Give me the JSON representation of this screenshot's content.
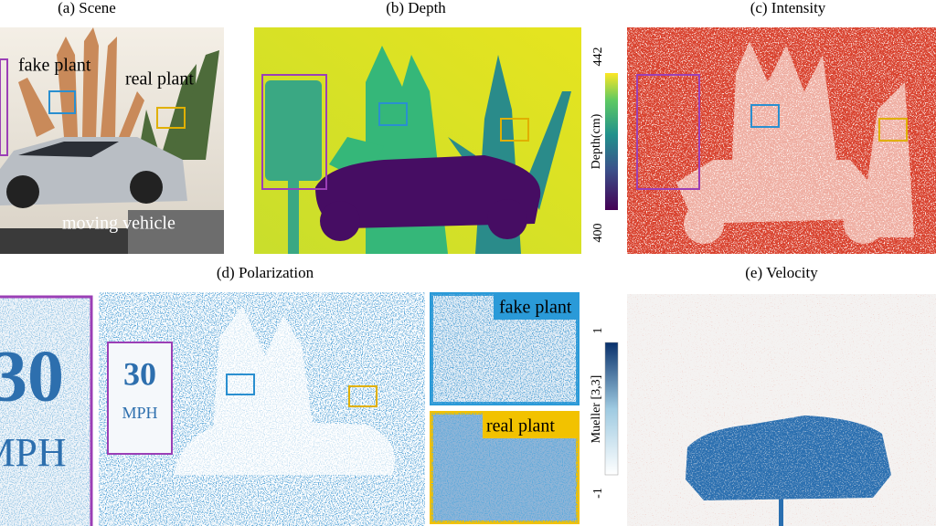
{
  "panels": {
    "scene": {
      "title": "(a) Scene",
      "labels": [
        "fake plant",
        "real plant",
        "moving vehicle"
      ]
    },
    "depth": {
      "title": "(b) Depth",
      "colorbar": {
        "label": "Depth(cm)",
        "max": "442",
        "min": "400"
      }
    },
    "intensity": {
      "title": "(c) Intensity"
    },
    "polarization": {
      "title": "(d) Polarization",
      "sign": [
        "30",
        "MPH"
      ],
      "insets": [
        "fake plant",
        "real plant"
      ]
    },
    "velocity": {
      "title": "(e) Velocity",
      "colorbar": {
        "label": "Mueller [3,3]",
        "max": "1",
        "min": "-1"
      }
    }
  }
}
